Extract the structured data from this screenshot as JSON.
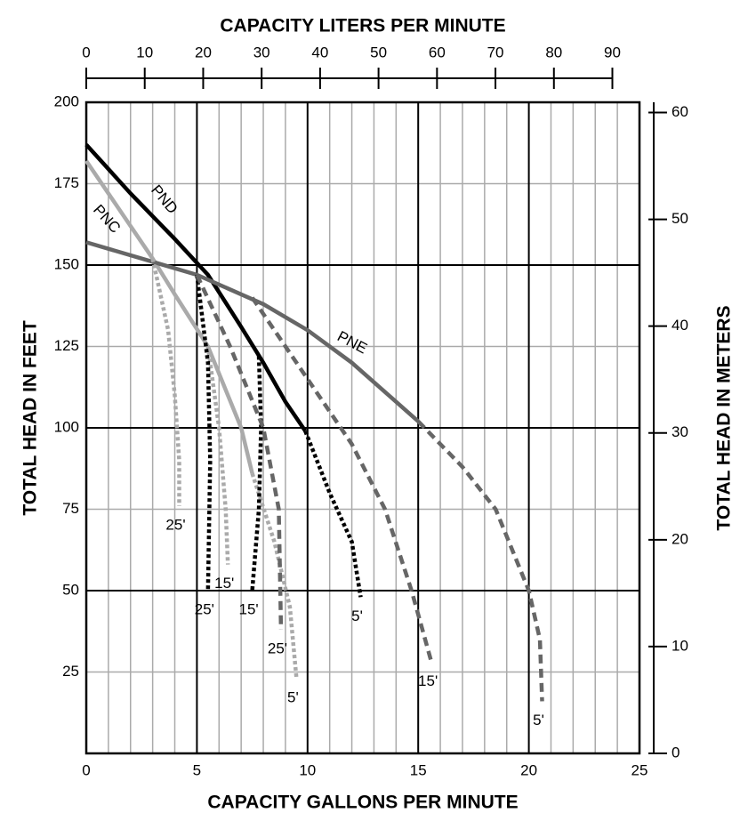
{
  "chart_data": {
    "type": "line",
    "title": "CAPACITY LITERS PER MINUTE",
    "xlabel": "CAPACITY GALLONS PER MINUTE",
    "ylabel": "TOTAL HEAD IN FEET",
    "y2label": "TOTAL HEAD IN METERS",
    "xlim": [
      0,
      25
    ],
    "xticks": [
      0,
      5,
      10,
      15,
      20,
      25
    ],
    "minor_xticks": [
      1,
      2,
      3,
      4,
      6,
      7,
      8,
      9,
      11,
      12,
      13,
      14,
      16,
      17,
      18,
      19,
      21,
      22,
      23,
      24
    ],
    "ylim": [
      0,
      200
    ],
    "yticks": [
      25,
      50,
      75,
      100,
      125,
      150,
      175,
      200
    ],
    "major_yticks": [
      50,
      100,
      150,
      200
    ],
    "x2lim": [
      0,
      94.64
    ],
    "x2ticks": [
      0,
      10,
      20,
      30,
      40,
      50,
      60,
      70,
      80,
      90
    ],
    "y2lim": [
      0,
      60.96
    ],
    "y2ticks": [
      0,
      10,
      20,
      30,
      40,
      50,
      60
    ],
    "grid": true,
    "series": [
      {
        "name": "PND",
        "color": "#000000",
        "style": "solid",
        "x": [
          0,
          2,
          4,
          5.5,
          7,
          8,
          9,
          9.9
        ],
        "values": [
          187,
          172,
          158,
          147,
          131,
          120,
          108,
          99
        ]
      },
      {
        "name": "PNC",
        "color": "#aaaaaa",
        "style": "solid",
        "x": [
          0,
          2,
          3,
          4,
          5.5,
          7,
          7.5
        ],
        "values": [
          182,
          162,
          152,
          141,
          125,
          100,
          86
        ]
      },
      {
        "name": "PNE",
        "color": "#666666",
        "style": "solid",
        "x": [
          0,
          3,
          5,
          8,
          10,
          12,
          14,
          15
        ],
        "values": [
          157,
          151,
          147,
          138,
          130,
          120,
          108,
          102
        ]
      },
      {
        "name": "25'",
        "color": "#aaaaaa",
        "style": "dotted",
        "x": [
          3,
          3.7,
          4,
          4.2,
          4.2
        ],
        "values": [
          152,
          130,
          110,
          90,
          76
        ]
      },
      {
        "name": "15'",
        "color": "#aaaaaa",
        "style": "dotted",
        "x": [
          5.5,
          6,
          6.3,
          6.4
        ],
        "values": [
          125,
          100,
          75,
          58
        ]
      },
      {
        "name": "5'",
        "color": "#aaaaaa",
        "style": "dotted",
        "x": [
          7.5,
          8.5,
          9.2,
          9.5
        ],
        "values": [
          86,
          65,
          45,
          23
        ]
      },
      {
        "name": "25'",
        "color": "#000000",
        "style": "dotted",
        "x": [
          5,
          5.5,
          5.6,
          5.5
        ],
        "values": [
          147,
          120,
          90,
          50
        ]
      },
      {
        "name": "15'",
        "color": "#000000",
        "style": "dotted",
        "x": [
          7.8,
          7.9,
          7.8,
          7.5
        ],
        "values": [
          122,
          100,
          75,
          50
        ]
      },
      {
        "name": "5'",
        "color": "#000000",
        "style": "dotted",
        "x": [
          9.9,
          11,
          12,
          12.4
        ],
        "values": [
          99,
          80,
          65,
          48
        ]
      },
      {
        "name": "25'",
        "color": "#666666",
        "style": "dashed",
        "x": [
          5,
          6.5,
          8,
          8.7,
          8.8
        ],
        "values": [
          147,
          125,
          100,
          75,
          38
        ]
      },
      {
        "name": "15'",
        "color": "#666666",
        "style": "dashed",
        "x": [
          7.5,
          10,
          12,
          13.5,
          14.7,
          15.6
        ],
        "values": [
          140,
          115,
          95,
          75,
          50,
          28
        ]
      },
      {
        "name": "5'",
        "color": "#666666",
        "style": "dashed",
        "x": [
          15,
          17,
          18.5,
          20,
          20.5,
          20.6
        ],
        "values": [
          102,
          88,
          75,
          50,
          35,
          16
        ]
      }
    ]
  }
}
